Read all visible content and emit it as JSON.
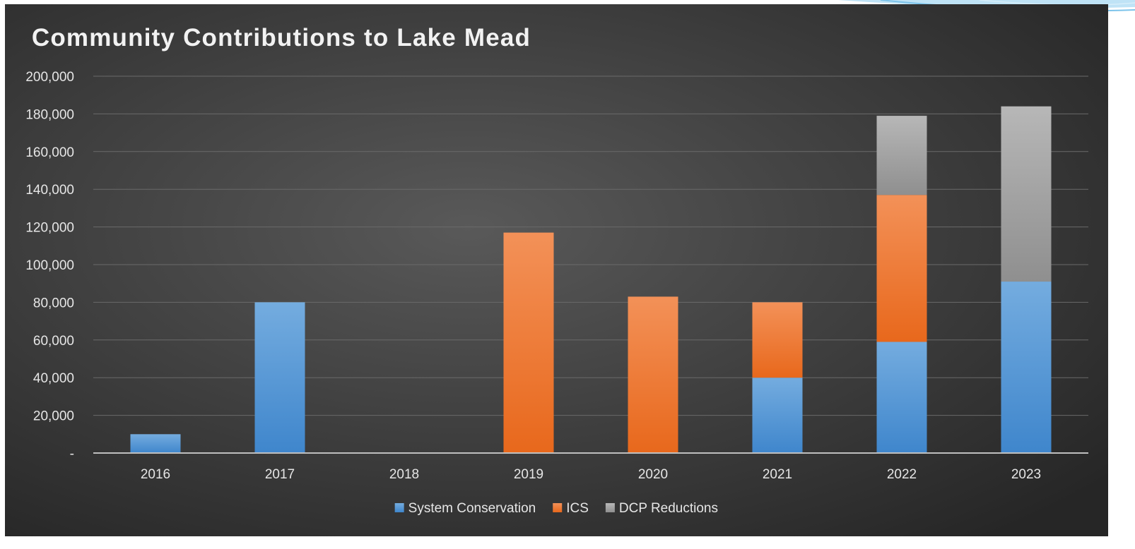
{
  "chart_data": {
    "type": "bar",
    "stacked": true,
    "title": "Community Contributions to Lake Mead",
    "xlabel": "",
    "ylabel": "",
    "categories": [
      "2016",
      "2017",
      "2018",
      "2019",
      "2020",
      "2021",
      "2022",
      "2023"
    ],
    "ylim": [
      0,
      200000
    ],
    "y_ticks": [
      0,
      20000,
      40000,
      60000,
      80000,
      100000,
      120000,
      140000,
      160000,
      180000,
      200000
    ],
    "y_tick_labels": [
      "-",
      "20,000",
      "40,000",
      "60,000",
      "80,000",
      "100,000",
      "120,000",
      "140,000",
      "160,000",
      "180,000",
      "200,000"
    ],
    "grid": true,
    "legend_position": "bottom",
    "series": [
      {
        "name": "System Conservation",
        "color": "#4a90d6",
        "values": [
          10000,
          80000,
          0,
          0,
          0,
          40000,
          59000,
          91000
        ]
      },
      {
        "name": "ICS",
        "color": "#f07a2a",
        "values": [
          0,
          0,
          0,
          117000,
          83000,
          40000,
          78000,
          0
        ]
      },
      {
        "name": "DCP Reductions",
        "color": "#a6a6a6",
        "values": [
          0,
          0,
          0,
          0,
          0,
          0,
          42000,
          93000
        ]
      }
    ]
  }
}
